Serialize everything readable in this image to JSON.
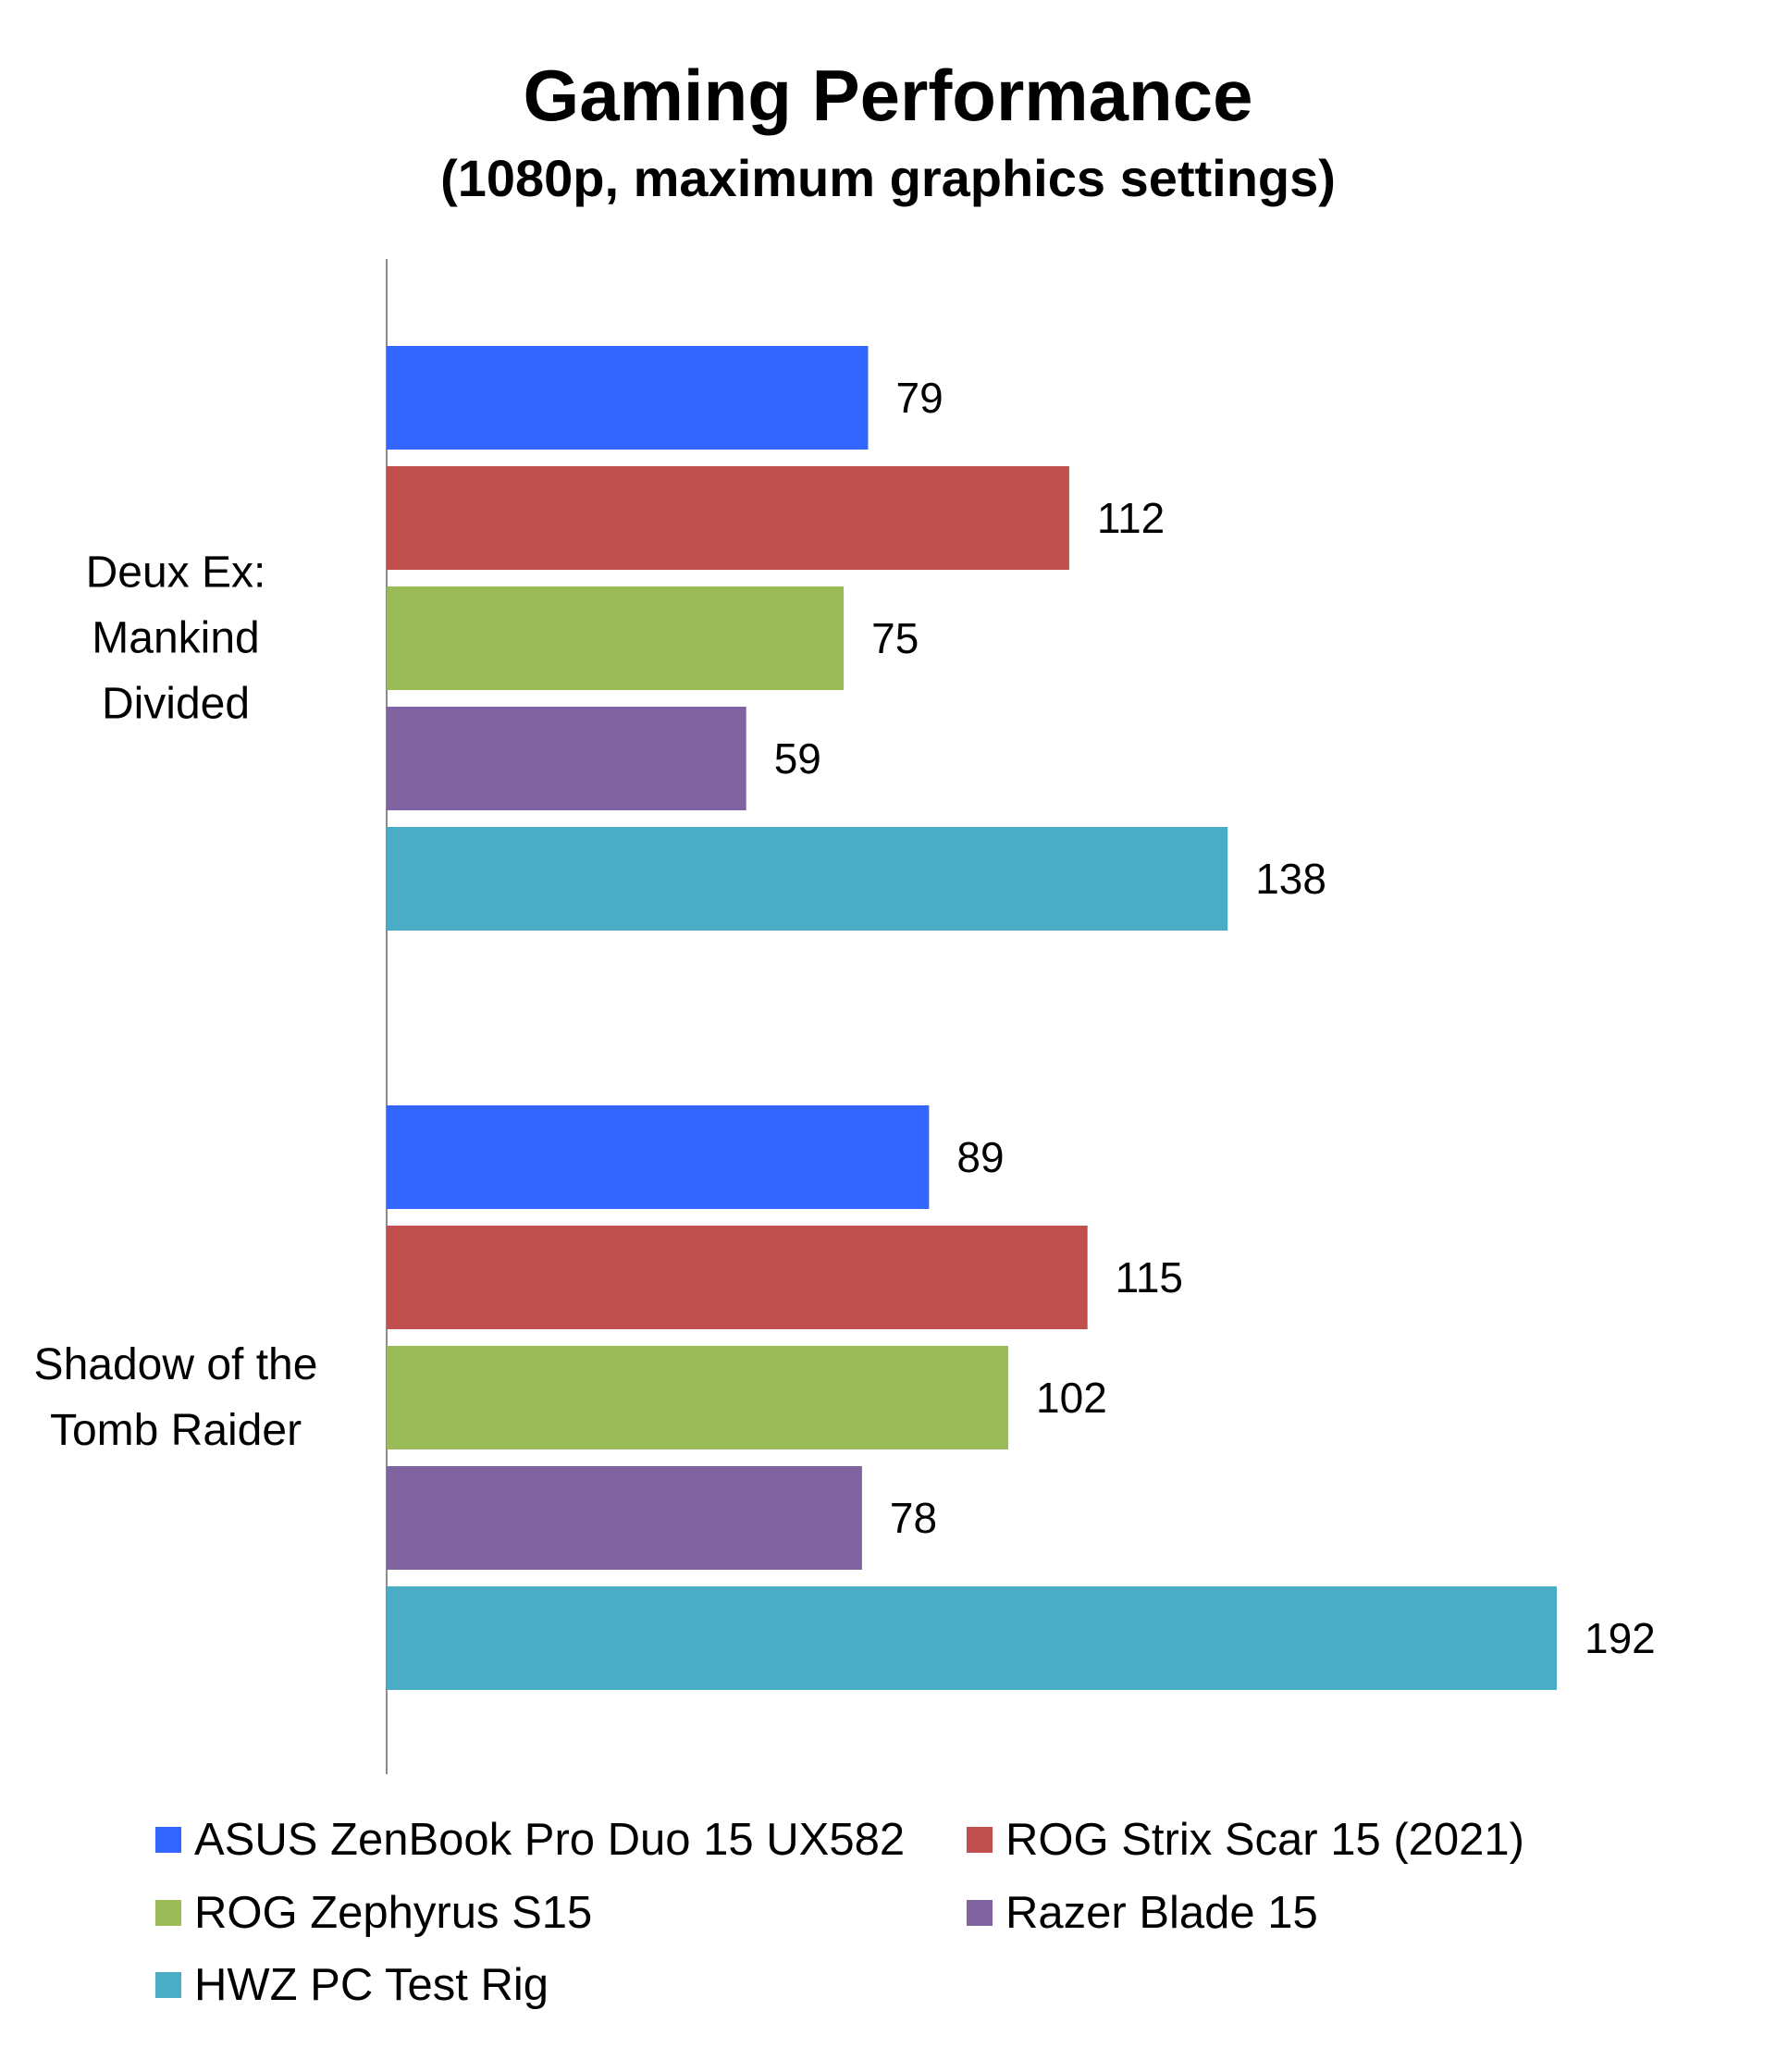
{
  "chart_data": {
    "type": "bar",
    "orientation": "horizontal",
    "title": "Gaming Performance",
    "subtitle": "(1080p, maximum graphics settings)",
    "xlabel": "",
    "ylabel": "",
    "categories": [
      [
        "Deux Ex:",
        "Mankind",
        "Divided"
      ],
      [
        "Shadow of the",
        "Tomb Raider"
      ]
    ],
    "series": [
      {
        "name": "ASUS ZenBook Pro Duo 15 UX582",
        "color": "#3366ff",
        "values": [
          79,
          89
        ]
      },
      {
        "name": "ROG Strix Scar 15 (2021)",
        "color": "#c0504d",
        "values": [
          112,
          115
        ]
      },
      {
        "name": "ROG Zephyrus S15",
        "color": "#9bbb59",
        "values": [
          75,
          102
        ]
      },
      {
        "name": "Razer Blade 15",
        "color": "#8064a2",
        "values": [
          59,
          78
        ]
      },
      {
        "name": "HWZ PC Test Rig",
        "color": "#4bacc6",
        "values": [
          138,
          192
        ]
      }
    ],
    "xlim": [
      0,
      200
    ],
    "grid": false,
    "data_labels": true,
    "legend": "bottom"
  }
}
